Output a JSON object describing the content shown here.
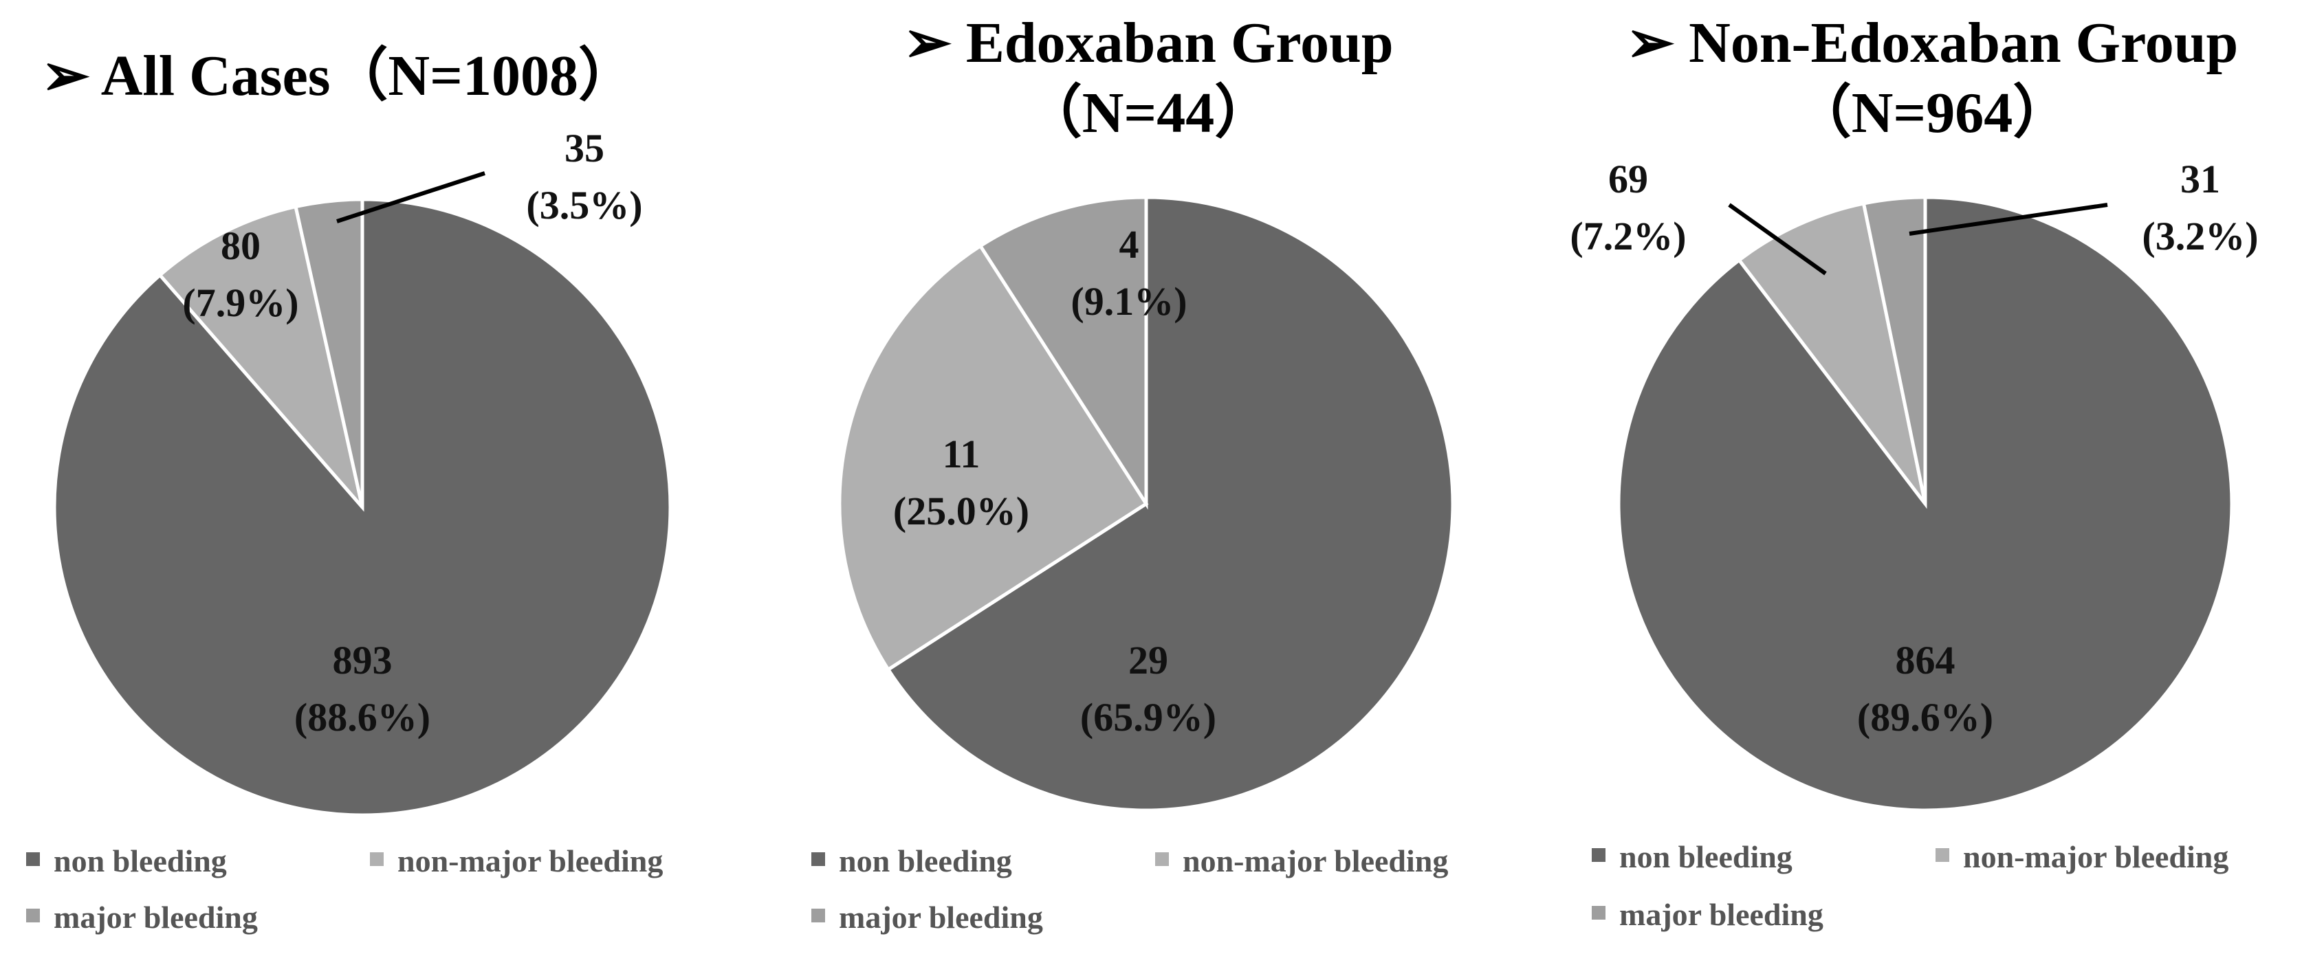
{
  "chart_data": [
    {
      "type": "pie",
      "title_lines": [
        "All Cases（N=1008）"
      ],
      "title_marker": "➢",
      "categories": [
        "non bleeding",
        "non-major bleeding",
        "major bleeding"
      ],
      "values": [
        893,
        80,
        35
      ],
      "value_labels": [
        "893",
        "80",
        "35"
      ],
      "percent_labels": [
        "(88.6%)",
        "(7.9%)",
        "(3.5%)"
      ],
      "colors": [
        "#666666",
        "#b0b0b0",
        "#9e9e9e"
      ],
      "legend": [
        "non bleeding",
        "non-major bleeding",
        "major bleeding"
      ],
      "legend_placement": "bottom"
    },
    {
      "type": "pie",
      "title_lines": [
        "Edoxaban Group",
        "（N=44）"
      ],
      "title_marker": "➢",
      "categories": [
        "non bleeding",
        "non-major bleeding",
        "major bleeding"
      ],
      "values": [
        29,
        11,
        4
      ],
      "value_labels": [
        "29",
        "11",
        "4"
      ],
      "percent_labels": [
        "(65.9%)",
        "(25.0%)",
        "(9.1%)"
      ],
      "colors": [
        "#666666",
        "#b0b0b0",
        "#9e9e9e"
      ],
      "legend": [
        "non bleeding",
        "non-major bleeding",
        "major bleeding"
      ],
      "legend_placement": "bottom"
    },
    {
      "type": "pie",
      "title_lines": [
        "Non-Edoxaban Group",
        "（N=964）"
      ],
      "title_marker": "➢",
      "categories": [
        "non bleeding",
        "non-major bleeding",
        "major bleeding"
      ],
      "values": [
        864,
        69,
        31
      ],
      "value_labels": [
        "864",
        "69",
        "31"
      ],
      "percent_labels": [
        "(89.6%)",
        "(7.2%)",
        "(3.2%)"
      ],
      "colors": [
        "#666666",
        "#b0b0b0",
        "#9e9e9e"
      ],
      "legend": [
        "non bleeding",
        "non-major bleeding",
        "major bleeding"
      ],
      "legend_placement": "bottom"
    }
  ]
}
